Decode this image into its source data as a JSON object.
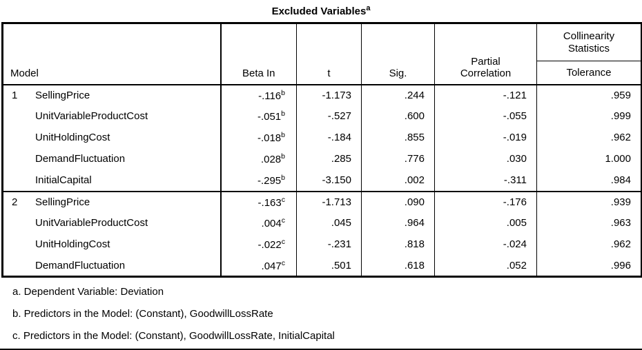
{
  "title": {
    "text": "Excluded Variables",
    "superscript": "a"
  },
  "table": {
    "headers": {
      "model": "Model",
      "beta_in": "Beta In",
      "t": "t",
      "sig": "Sig.",
      "partial_correlation": "Partial Correlation",
      "collinearity_statistics": "Collinearity Statistics",
      "tolerance": "Tolerance"
    },
    "groups": [
      {
        "model": "1",
        "rows": [
          {
            "variable": "SellingPrice",
            "beta_in": "-.116",
            "beta_sup": "b",
            "t": "-1.173",
            "sig": ".244",
            "partial": "-.121",
            "tolerance": ".959"
          },
          {
            "variable": "UnitVariableProductCost",
            "beta_in": "-.051",
            "beta_sup": "b",
            "t": "-.527",
            "sig": ".600",
            "partial": "-.055",
            "tolerance": ".999"
          },
          {
            "variable": "UnitHoldingCost",
            "beta_in": "-.018",
            "beta_sup": "b",
            "t": "-.184",
            "sig": ".855",
            "partial": "-.019",
            "tolerance": ".962"
          },
          {
            "variable": "DemandFluctuation",
            "beta_in": ".028",
            "beta_sup": "b",
            "t": ".285",
            "sig": ".776",
            "partial": ".030",
            "tolerance": "1.000"
          },
          {
            "variable": "InitialCapital",
            "beta_in": "-.295",
            "beta_sup": "b",
            "t": "-3.150",
            "sig": ".002",
            "partial": "-.311",
            "tolerance": ".984"
          }
        ]
      },
      {
        "model": "2",
        "rows": [
          {
            "variable": "SellingPrice",
            "beta_in": "-.163",
            "beta_sup": "c",
            "t": "-1.713",
            "sig": ".090",
            "partial": "-.176",
            "tolerance": ".939"
          },
          {
            "variable": "UnitVariableProductCost",
            "beta_in": ".004",
            "beta_sup": "c",
            "t": ".045",
            "sig": ".964",
            "partial": ".005",
            "tolerance": ".963"
          },
          {
            "variable": "UnitHoldingCost",
            "beta_in": "-.022",
            "beta_sup": "c",
            "t": "-.231",
            "sig": ".818",
            "partial": "-.024",
            "tolerance": ".962"
          },
          {
            "variable": "DemandFluctuation",
            "beta_in": ".047",
            "beta_sup": "c",
            "t": ".501",
            "sig": ".618",
            "partial": ".052",
            "tolerance": ".996"
          }
        ]
      }
    ]
  },
  "footnotes": [
    "a. Dependent Variable: Deviation",
    "b. Predictors in the Model: (Constant), GoodwillLossRate",
    "c. Predictors in the Model: (Constant), GoodwillLossRate, InitialCapital"
  ]
}
